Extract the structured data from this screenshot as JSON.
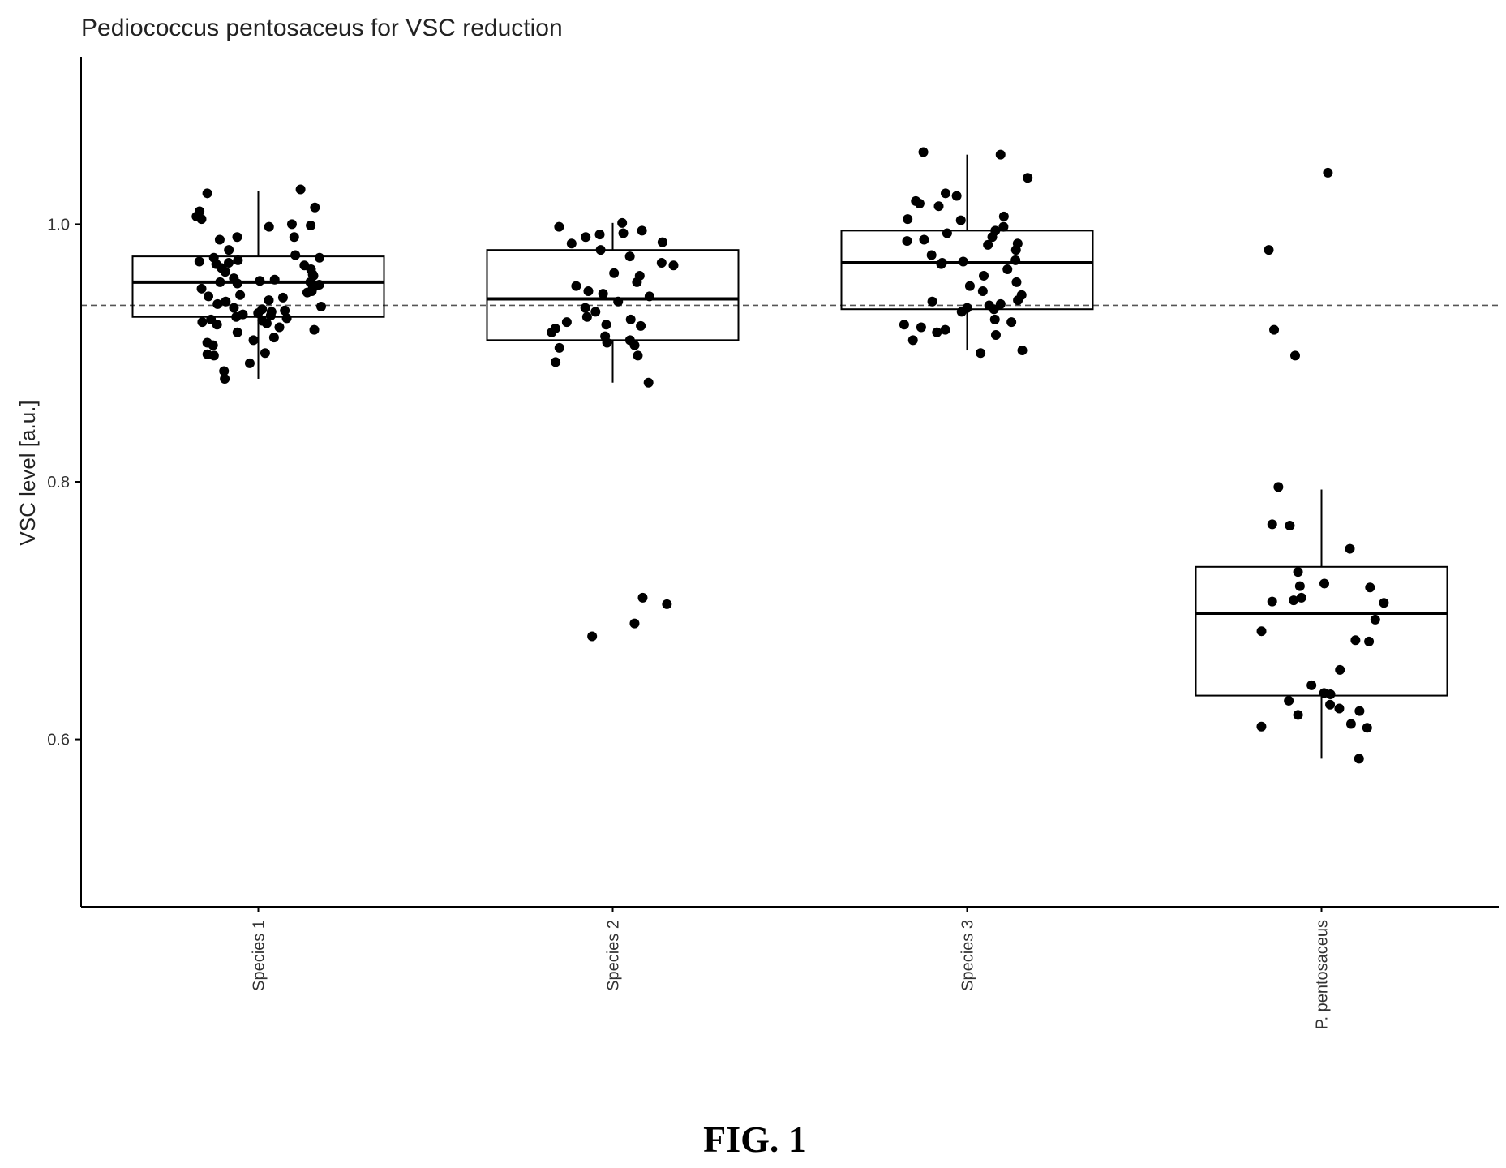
{
  "chart_data": {
    "type": "box",
    "title": "Pediococcus pentosaceus for VSC reduction",
    "ylabel": "VSC level [a.u.]",
    "xlabel": "",
    "ylim": [
      0.47,
      1.13
    ],
    "yticks": [
      0.6,
      0.8,
      1.0
    ],
    "ytick_labels": [
      "0.6",
      "0.8",
      "1.0"
    ],
    "reference_line": 0.937,
    "categories": [
      "Species 1",
      "Species 2",
      "Species 3",
      "P. pentosaceus"
    ],
    "grid": false,
    "legend": "none",
    "point_color": "#000000",
    "boxes": [
      {
        "q1": 0.928,
        "median": 0.955,
        "q3": 0.975,
        "whisker_low": 0.88,
        "whisker_high": 1.026
      },
      {
        "q1": 0.91,
        "median": 0.942,
        "q3": 0.98,
        "whisker_low": 0.877,
        "whisker_high": 1.001
      },
      {
        "q1": 0.934,
        "median": 0.97,
        "q3": 0.995,
        "whisker_low": 0.902,
        "whisker_high": 1.054
      },
      {
        "q1": 0.634,
        "median": 0.698,
        "q3": 0.734,
        "whisker_low": 0.585,
        "whisker_high": 0.794
      }
    ],
    "points": [
      [
        1.024,
        1.027,
        1.013,
        1.01,
        1.006,
        1.004,
        1.0,
        0.998,
        0.999,
        0.99,
        0.99,
        0.988,
        0.98,
        0.976,
        0.974,
        0.974,
        0.972,
        0.971,
        0.97,
        0.969,
        0.968,
        0.966,
        0.965,
        0.963,
        0.961,
        0.96,
        0.958,
        0.957,
        0.956,
        0.955,
        0.955,
        0.954,
        0.953,
        0.952,
        0.951,
        0.95,
        0.948,
        0.947,
        0.945,
        0.944,
        0.943,
        0.941,
        0.94,
        0.938,
        0.936,
        0.935,
        0.934,
        0.933,
        0.932,
        0.931,
        0.93,
        0.929,
        0.928,
        0.927,
        0.926,
        0.925,
        0.924,
        0.923,
        0.922,
        0.92,
        0.918,
        0.916,
        0.912,
        0.91,
        0.908,
        0.906,
        0.9,
        0.899,
        0.898,
        0.892,
        0.886,
        0.88
      ],
      [
        1.001,
        0.998,
        0.995,
        0.993,
        0.992,
        0.99,
        0.986,
        0.985,
        0.98,
        0.975,
        0.97,
        0.968,
        0.962,
        0.96,
        0.955,
        0.952,
        0.948,
        0.946,
        0.944,
        0.94,
        0.935,
        0.932,
        0.928,
        0.926,
        0.924,
        0.922,
        0.921,
        0.919,
        0.916,
        0.913,
        0.91,
        0.908,
        0.906,
        0.904,
        0.898,
        0.893,
        0.877,
        0.71,
        0.705,
        0.69,
        0.68
      ],
      [
        1.056,
        1.054,
        1.036,
        1.024,
        1.022,
        1.018,
        1.016,
        1.014,
        1.006,
        1.004,
        1.003,
        0.998,
        0.995,
        0.993,
        0.99,
        0.988,
        0.987,
        0.985,
        0.984,
        0.98,
        0.976,
        0.972,
        0.971,
        0.97,
        0.969,
        0.965,
        0.96,
        0.955,
        0.952,
        0.948,
        0.945,
        0.941,
        0.94,
        0.938,
        0.937,
        0.935,
        0.934,
        0.932,
        0.926,
        0.924,
        0.922,
        0.92,
        0.918,
        0.916,
        0.914,
        0.91,
        0.902,
        0.9
      ],
      [
        1.04,
        0.98,
        0.918,
        0.898,
        0.796,
        0.767,
        0.766,
        0.748,
        0.73,
        0.721,
        0.719,
        0.718,
        0.71,
        0.708,
        0.707,
        0.706,
        0.693,
        0.684,
        0.677,
        0.676,
        0.654,
        0.642,
        0.636,
        0.635,
        0.63,
        0.627,
        0.624,
        0.622,
        0.619,
        0.612,
        0.61,
        0.609,
        0.585
      ]
    ]
  },
  "figure": {
    "caption": "FIG. 1"
  }
}
